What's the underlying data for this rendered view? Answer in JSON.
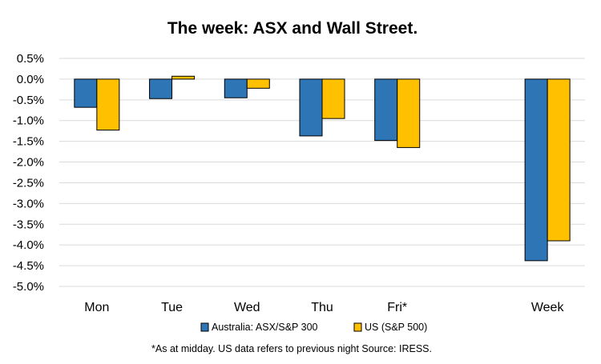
{
  "chart_data": {
    "type": "bar",
    "title": "The week:  ASX and Wall Street.",
    "categories": [
      "Mon",
      "Tue",
      "Wed",
      "Thu",
      "Fri*",
      "",
      "Week"
    ],
    "series": [
      {
        "name": "Australia: ASX/S&P 300",
        "color": "#2e75b6",
        "values": [
          -0.68,
          -0.47,
          -0.45,
          -1.37,
          -1.48,
          null,
          -4.38
        ]
      },
      {
        "name": "US (S&P 500)",
        "color": "#ffc000",
        "values": [
          -1.23,
          0.07,
          -0.22,
          -0.95,
          -1.65,
          null,
          -3.9
        ]
      }
    ],
    "ylim": [
      -5.0,
      0.5
    ],
    "yticks": [
      0.5,
      0.0,
      -0.5,
      -1.0,
      -1.5,
      -2.0,
      -2.5,
      -3.0,
      -3.5,
      -4.0,
      -4.5,
      -5.0
    ],
    "ytick_labels": [
      "0.5%",
      "0.0%",
      "-0.5%",
      "-1.0%",
      "-1.5%",
      "-2.0%",
      "-2.5%",
      "-3.0%",
      "-3.5%",
      "-4.0%",
      "-4.5%",
      "-5.0%"
    ],
    "grid": true,
    "legend_position": "bottom",
    "footnote": "*As at midday. US data refers to previous night  Source:  IRESS."
  }
}
